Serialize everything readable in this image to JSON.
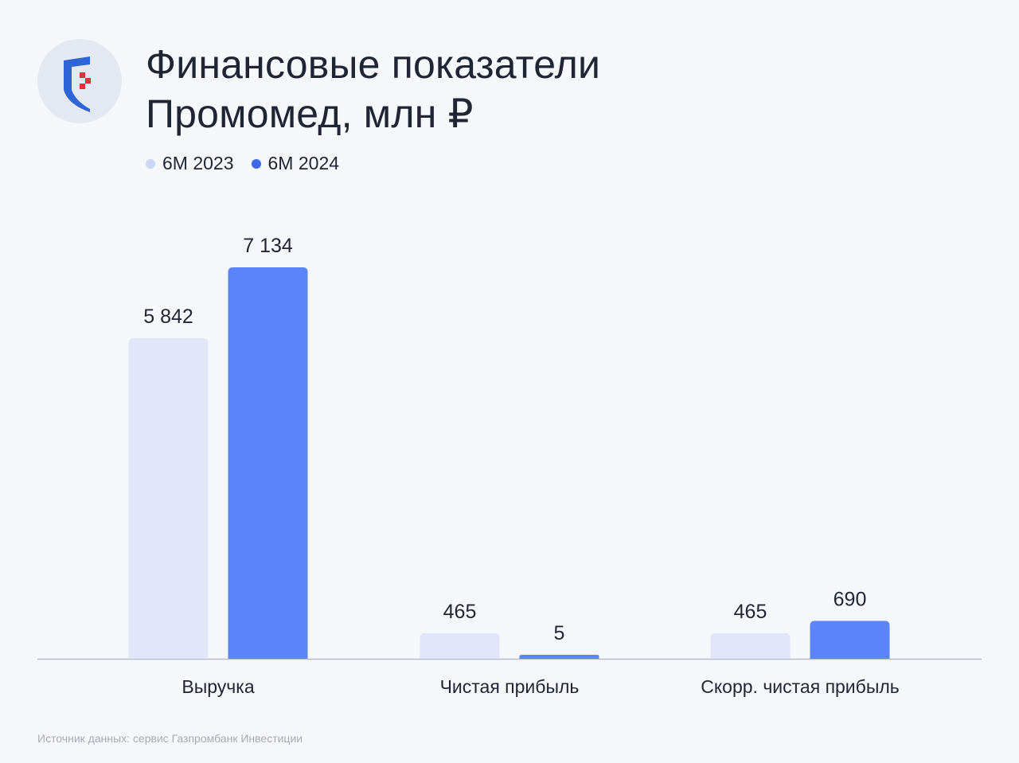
{
  "header": {
    "title_line1": "Финансовые показатели",
    "title_line2": "Промомед, млн ₽"
  },
  "logo": {
    "icon": "shield-logo-icon"
  },
  "colors": {
    "series_2023": "#e1e6fb",
    "series_2024": "#5c85fc",
    "legend_2023": "#cbd5f4",
    "legend_2024": "#3c68ec",
    "axis": "#b8bec8",
    "text": "#1f2533",
    "source_text": "#a6acb7",
    "logo_blue": "#2f63d8",
    "logo_red": "#e0323c"
  },
  "chart_data": {
    "type": "bar",
    "title": "Финансовые показатели Промомед, млн ₽",
    "categories": [
      "Выручка",
      "Чистая прибыль",
      "Скорр. чистая прибыль"
    ],
    "series": [
      {
        "name": "6М 2023",
        "values": [
          5842,
          465,
          465
        ],
        "labels": [
          "5 842",
          "465",
          "465"
        ]
      },
      {
        "name": "6М 2024",
        "values": [
          7134,
          5,
          690
        ],
        "labels": [
          "7 134",
          "5",
          "690"
        ]
      }
    ],
    "ylim": [
      0,
      7134
    ],
    "grid": false,
    "legend_position": "top-left"
  },
  "footer": {
    "source": "Источник данных: сервис Газпромбанк Инвестиции"
  }
}
